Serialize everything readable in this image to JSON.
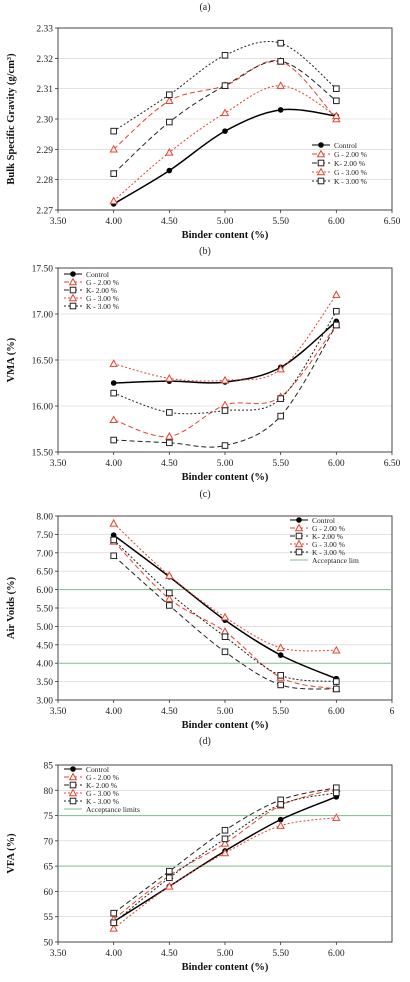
{
  "chart_data": [
    {
      "panel": "(a)",
      "type": "line",
      "xlabel": "Binder content (%)",
      "ylabel": "Bulk Specific Gravity (g/cm³)",
      "xlim": [
        3.5,
        6.5
      ],
      "ylim": [
        2.27,
        2.33
      ],
      "xticks": [
        "3.50",
        "4.00",
        "4.50",
        "5.00",
        "5.50",
        "6.00",
        "6.50"
      ],
      "yticks": [
        "2.27",
        "2.28",
        "2.29",
        "2.30",
        "2.31",
        "2.32",
        "2.33"
      ],
      "legend_position": "bottom-right",
      "series": [
        {
          "name": "Control",
          "color": "#000000",
          "dash": "",
          "marker": "dot",
          "x": [
            4.0,
            4.5,
            5.0,
            5.5,
            6.0
          ],
          "y": [
            2.272,
            2.283,
            2.296,
            2.303,
            2.301
          ]
        },
        {
          "name": "G - 2.00 %",
          "color": "#e8412c",
          "dash": "5,3",
          "marker": "triangle",
          "x": [
            4.0,
            4.5,
            5.0,
            5.5,
            6.0
          ],
          "y": [
            2.29,
            2.306,
            2.311,
            2.319,
            2.3
          ]
        },
        {
          "name": "K- 2.00 %",
          "color": "#222222",
          "dash": "5,3",
          "marker": "square",
          "x": [
            4.0,
            4.5,
            5.0,
            5.5,
            6.0
          ],
          "y": [
            2.282,
            2.299,
            2.311,
            2.319,
            2.306
          ]
        },
        {
          "name": "G - 3.00 %",
          "color": "#e8412c",
          "dash": "2,2",
          "marker": "triangle",
          "x": [
            4.0,
            4.5,
            5.0,
            5.5,
            6.0
          ],
          "y": [
            2.273,
            2.289,
            2.302,
            2.311,
            2.301
          ]
        },
        {
          "name": "K - 3.00 %",
          "color": "#222222",
          "dash": "2,2",
          "marker": "square",
          "x": [
            4.0,
            4.5,
            5.0,
            5.5,
            6.0
          ],
          "y": [
            2.296,
            2.308,
            2.321,
            2.325,
            2.31
          ]
        }
      ]
    },
    {
      "panel": "(b)",
      "type": "line",
      "xlabel": "Binder content (%)",
      "ylabel": "VMA (%)",
      "xlim": [
        3.5,
        6.5
      ],
      "ylim": [
        15.5,
        17.5
      ],
      "xticks": [
        "3.50",
        "4.00",
        "4.50",
        "5.00",
        "5.50",
        "6.00",
        "6.50"
      ],
      "yticks": [
        "15.50",
        "16.00",
        "16.50",
        "17.00",
        "17.50"
      ],
      "legend_position": "top-left",
      "series": [
        {
          "name": "Control",
          "color": "#000000",
          "dash": "",
          "marker": "dot",
          "x": [
            4.0,
            4.5,
            5.0,
            5.5,
            6.0
          ],
          "y": [
            16.25,
            16.27,
            16.26,
            16.42,
            16.92
          ]
        },
        {
          "name": "G - 2.00 %",
          "color": "#e8412c",
          "dash": "5,3",
          "marker": "triangle",
          "x": [
            4.0,
            4.5,
            5.0,
            5.5,
            6.0
          ],
          "y": [
            15.85,
            15.67,
            16.01,
            16.1,
            16.88
          ]
        },
        {
          "name": "K- 2.00 %",
          "color": "#222222",
          "dash": "5,3",
          "marker": "square",
          "x": [
            4.0,
            4.5,
            5.0,
            5.5,
            6.0
          ],
          "y": [
            15.63,
            15.6,
            15.57,
            15.89,
            16.88
          ]
        },
        {
          "name": "G - 3.00 %",
          "color": "#e8412c",
          "dash": "2,2",
          "marker": "triangle",
          "x": [
            4.0,
            4.5,
            5.0,
            5.5,
            6.0
          ],
          "y": [
            16.46,
            16.3,
            16.28,
            16.4,
            17.21
          ]
        },
        {
          "name": "K - 3.00 %",
          "color": "#222222",
          "dash": "2,2",
          "marker": "square",
          "x": [
            4.0,
            4.5,
            5.0,
            5.5,
            6.0
          ],
          "y": [
            16.14,
            15.93,
            15.95,
            16.08,
            17.03
          ]
        }
      ]
    },
    {
      "panel": "(c)",
      "type": "line",
      "xlabel": "Binder content (%)",
      "ylabel": "Air Voids (%)",
      "xlim": [
        3.5,
        6.5
      ],
      "ylim": [
        3.0,
        8.0
      ],
      "xticks": [
        "3.50",
        "4.00",
        "4.50",
        "5.00",
        "5.50",
        "6.00",
        "6"
      ],
      "yticks": [
        "3.00",
        "3.50",
        "4.00",
        "4.50",
        "5.00",
        "5.50",
        "6.00",
        "6.50",
        "7.00",
        "7.50",
        "8.00"
      ],
      "legend_position": "top-right",
      "reference_lines": [
        4.0,
        6.0
      ],
      "reference_label": "Acceptance lim",
      "series": [
        {
          "name": "Control",
          "color": "#000000",
          "dash": "",
          "marker": "dot",
          "x": [
            4.0,
            4.5,
            5.0,
            5.5,
            6.0
          ],
          "y": [
            7.48,
            6.35,
            5.17,
            4.22,
            3.58
          ]
        },
        {
          "name": "G - 2.00 %",
          "color": "#e8412c",
          "dash": "5,3",
          "marker": "triangle",
          "x": [
            4.0,
            4.5,
            5.0,
            5.5,
            6.0
          ],
          "y": [
            7.31,
            5.75,
            4.86,
            3.61,
            3.3
          ]
        },
        {
          "name": "K- 2.00 %",
          "color": "#222222",
          "dash": "5,3",
          "marker": "square",
          "x": [
            4.0,
            4.5,
            5.0,
            5.5,
            6.0
          ],
          "y": [
            6.92,
            5.57,
            4.31,
            3.41,
            3.3
          ]
        },
        {
          "name": "G - 3.00 %",
          "color": "#e8412c",
          "dash": "2,2",
          "marker": "triangle",
          "x": [
            4.0,
            4.5,
            5.0,
            5.5,
            6.0
          ],
          "y": [
            7.8,
            6.38,
            5.25,
            4.42,
            4.35
          ]
        },
        {
          "name": "K - 3.00 %",
          "color": "#222222",
          "dash": "2,2",
          "marker": "square",
          "x": [
            4.0,
            4.5,
            5.0,
            5.5,
            6.0
          ],
          "y": [
            7.35,
            5.91,
            4.72,
            3.67,
            3.5
          ]
        }
      ]
    },
    {
      "panel": "(d)",
      "type": "line",
      "xlabel": "Binder content (%)",
      "ylabel": "VFA (%)",
      "xlim": [
        3.5,
        6.5
      ],
      "ylim": [
        50,
        85
      ],
      "xticks": [
        "3.50",
        "4.00",
        "4.50",
        "5.00",
        "5.50",
        "6.00"
      ],
      "yticks": [
        "50",
        "55",
        "60",
        "65",
        "70",
        "75",
        "80",
        "85"
      ],
      "legend_position": "top-left",
      "reference_lines": [
        65,
        75
      ],
      "reference_label": "Acceptance limits",
      "series": [
        {
          "name": "Control",
          "color": "#000000",
          "dash": "",
          "marker": "dot",
          "x": [
            4.0,
            4.5,
            5.0,
            5.5,
            6.0
          ],
          "y": [
            54.0,
            61.0,
            68.0,
            74.2,
            78.7
          ]
        },
        {
          "name": "G - 2.00 %",
          "color": "#e8412c",
          "dash": "5,3",
          "marker": "triangle",
          "x": [
            4.0,
            4.5,
            5.0,
            5.5,
            6.0
          ],
          "y": [
            54.5,
            63.1,
            69.5,
            77.0,
            80.3
          ]
        },
        {
          "name": "K- 2.00 %",
          "color": "#222222",
          "dash": "5,3",
          "marker": "square",
          "x": [
            4.0,
            4.5,
            5.0,
            5.5,
            6.0
          ],
          "y": [
            55.7,
            64.0,
            72.1,
            78.1,
            80.5
          ]
        },
        {
          "name": "G - 3.00 %",
          "color": "#e8412c",
          "dash": "2,2",
          "marker": "triangle",
          "x": [
            4.0,
            4.5,
            5.0,
            5.5,
            6.0
          ],
          "y": [
            52.7,
            61.0,
            67.6,
            73.0,
            74.6
          ]
        },
        {
          "name": "K - 3.00 %",
          "color": "#222222",
          "dash": "2,2",
          "marker": "square",
          "x": [
            4.0,
            4.5,
            5.0,
            5.5,
            6.0
          ],
          "y": [
            53.8,
            62.7,
            70.4,
            77.2,
            79.5
          ]
        }
      ]
    }
  ],
  "colors": {
    "reference_line": "#7fbf8c",
    "axis": "#333333",
    "grid": "#d0d0d0"
  }
}
